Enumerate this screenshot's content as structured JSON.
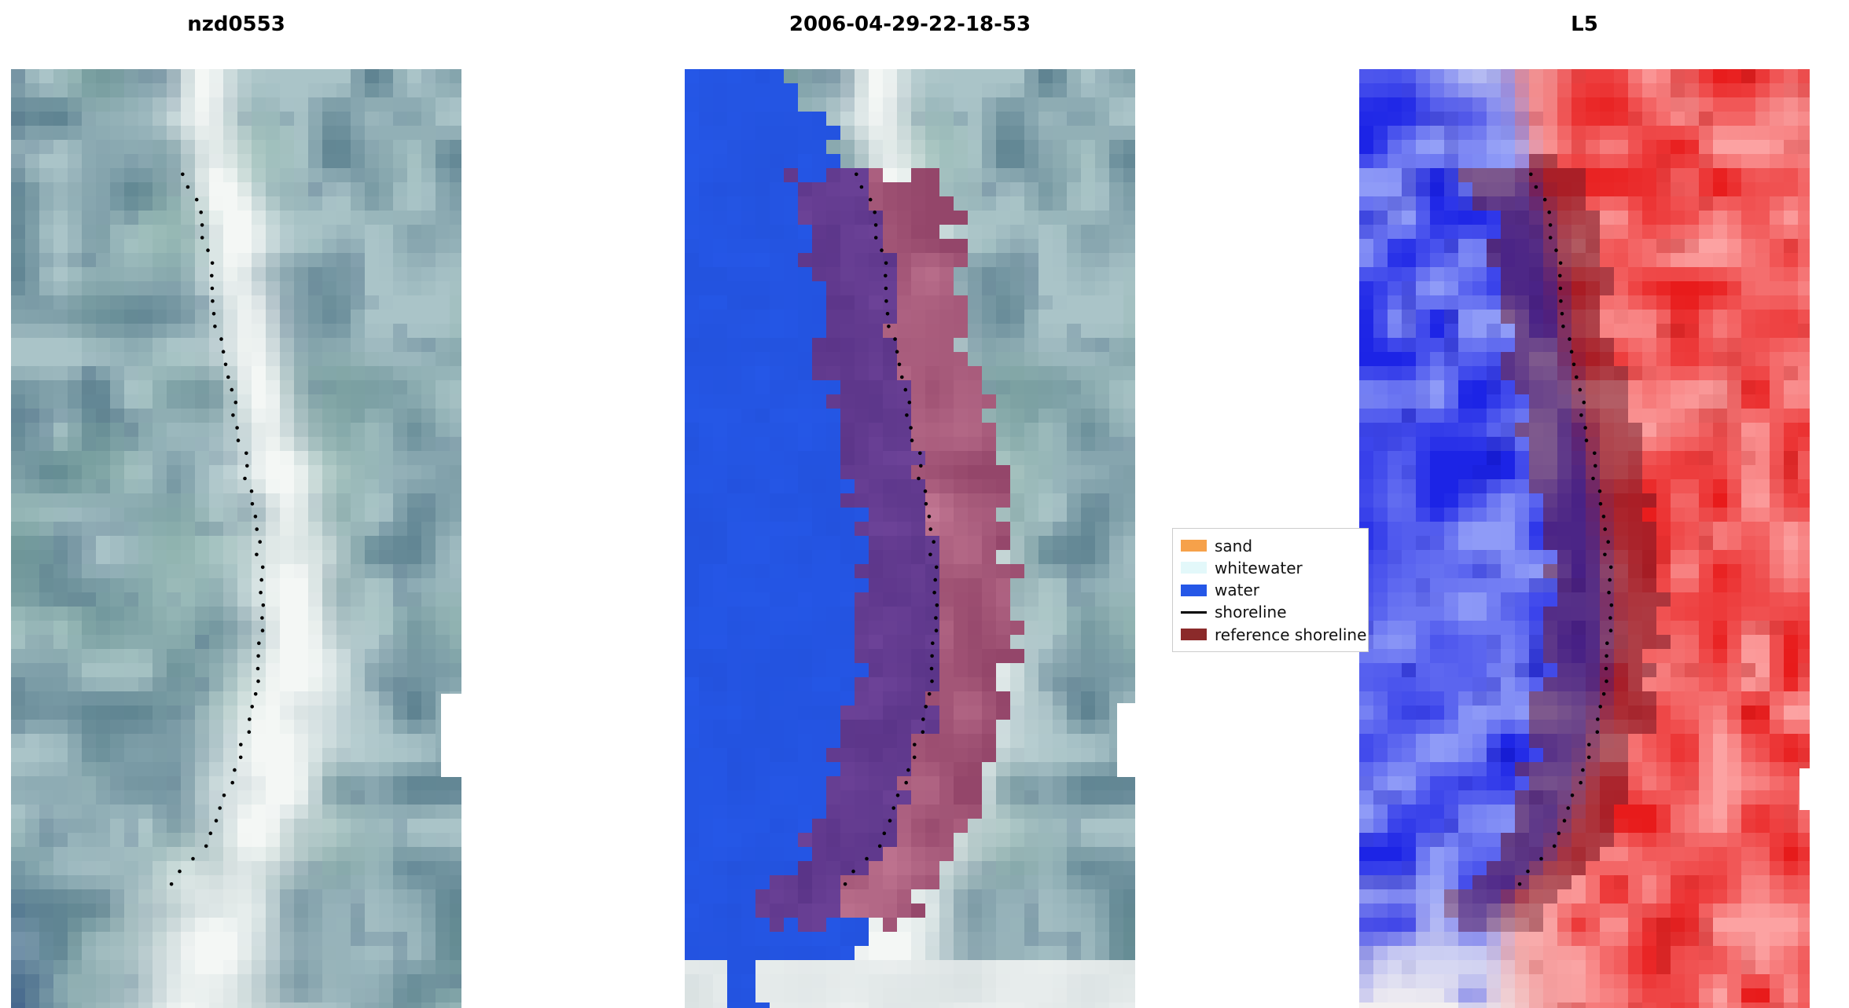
{
  "figure": {
    "background": "#ffffff",
    "panels": [
      {
        "title": "nzd0553",
        "mode": "rgb"
      },
      {
        "title": "2006-04-29-22-18-53",
        "mode": "classification"
      },
      {
        "title": "L5",
        "mode": "falsecolor"
      }
    ],
    "legend": {
      "items": [
        {
          "label": "sand",
          "type": "patch",
          "color": "#f6a14a"
        },
        {
          "label": "whitewater",
          "type": "patch",
          "color": "#e3f8fa"
        },
        {
          "label": "water",
          "type": "patch",
          "color": "#2557e7"
        },
        {
          "label": "shoreline",
          "type": "line",
          "color": "#000000"
        },
        {
          "label": "reference shoreline",
          "type": "patch",
          "color": "#8b2a2a"
        }
      ]
    }
  },
  "chart_data": {
    "type": "image",
    "subtype": "shoreline-detection-three-panel-figure",
    "titles": [
      "nzd0553",
      "2006-04-29-22-18-53",
      "L5"
    ],
    "legend_entries": [
      "sand",
      "whitewater",
      "water",
      "shoreline",
      "reference shoreline"
    ],
    "shoreline_points_norm_yx": [
      [
        0.0,
        0.345
      ],
      [
        0.11,
        0.385
      ],
      [
        0.16,
        0.425
      ],
      [
        0.22,
        0.445
      ],
      [
        0.3,
        0.465
      ],
      [
        0.38,
        0.505
      ],
      [
        0.46,
        0.535
      ],
      [
        0.54,
        0.555
      ],
      [
        0.6,
        0.56
      ],
      [
        0.66,
        0.545
      ],
      [
        0.72,
        0.515
      ],
      [
        0.78,
        0.475
      ],
      [
        0.83,
        0.43
      ],
      [
        0.875,
        0.335
      ],
      [
        1.0,
        0.3
      ]
    ],
    "colors": {
      "water_class": "#2557e7",
      "reference_overlap_purple": "#6d4398",
      "reference_over_sand_pink": "#bc6d8c",
      "reference_shoreline": "#8b2a2a",
      "falsecolor_water": "#1c24e6",
      "falsecolor_land": "#e81b1b",
      "shoreline_dots": "#000000"
    }
  }
}
